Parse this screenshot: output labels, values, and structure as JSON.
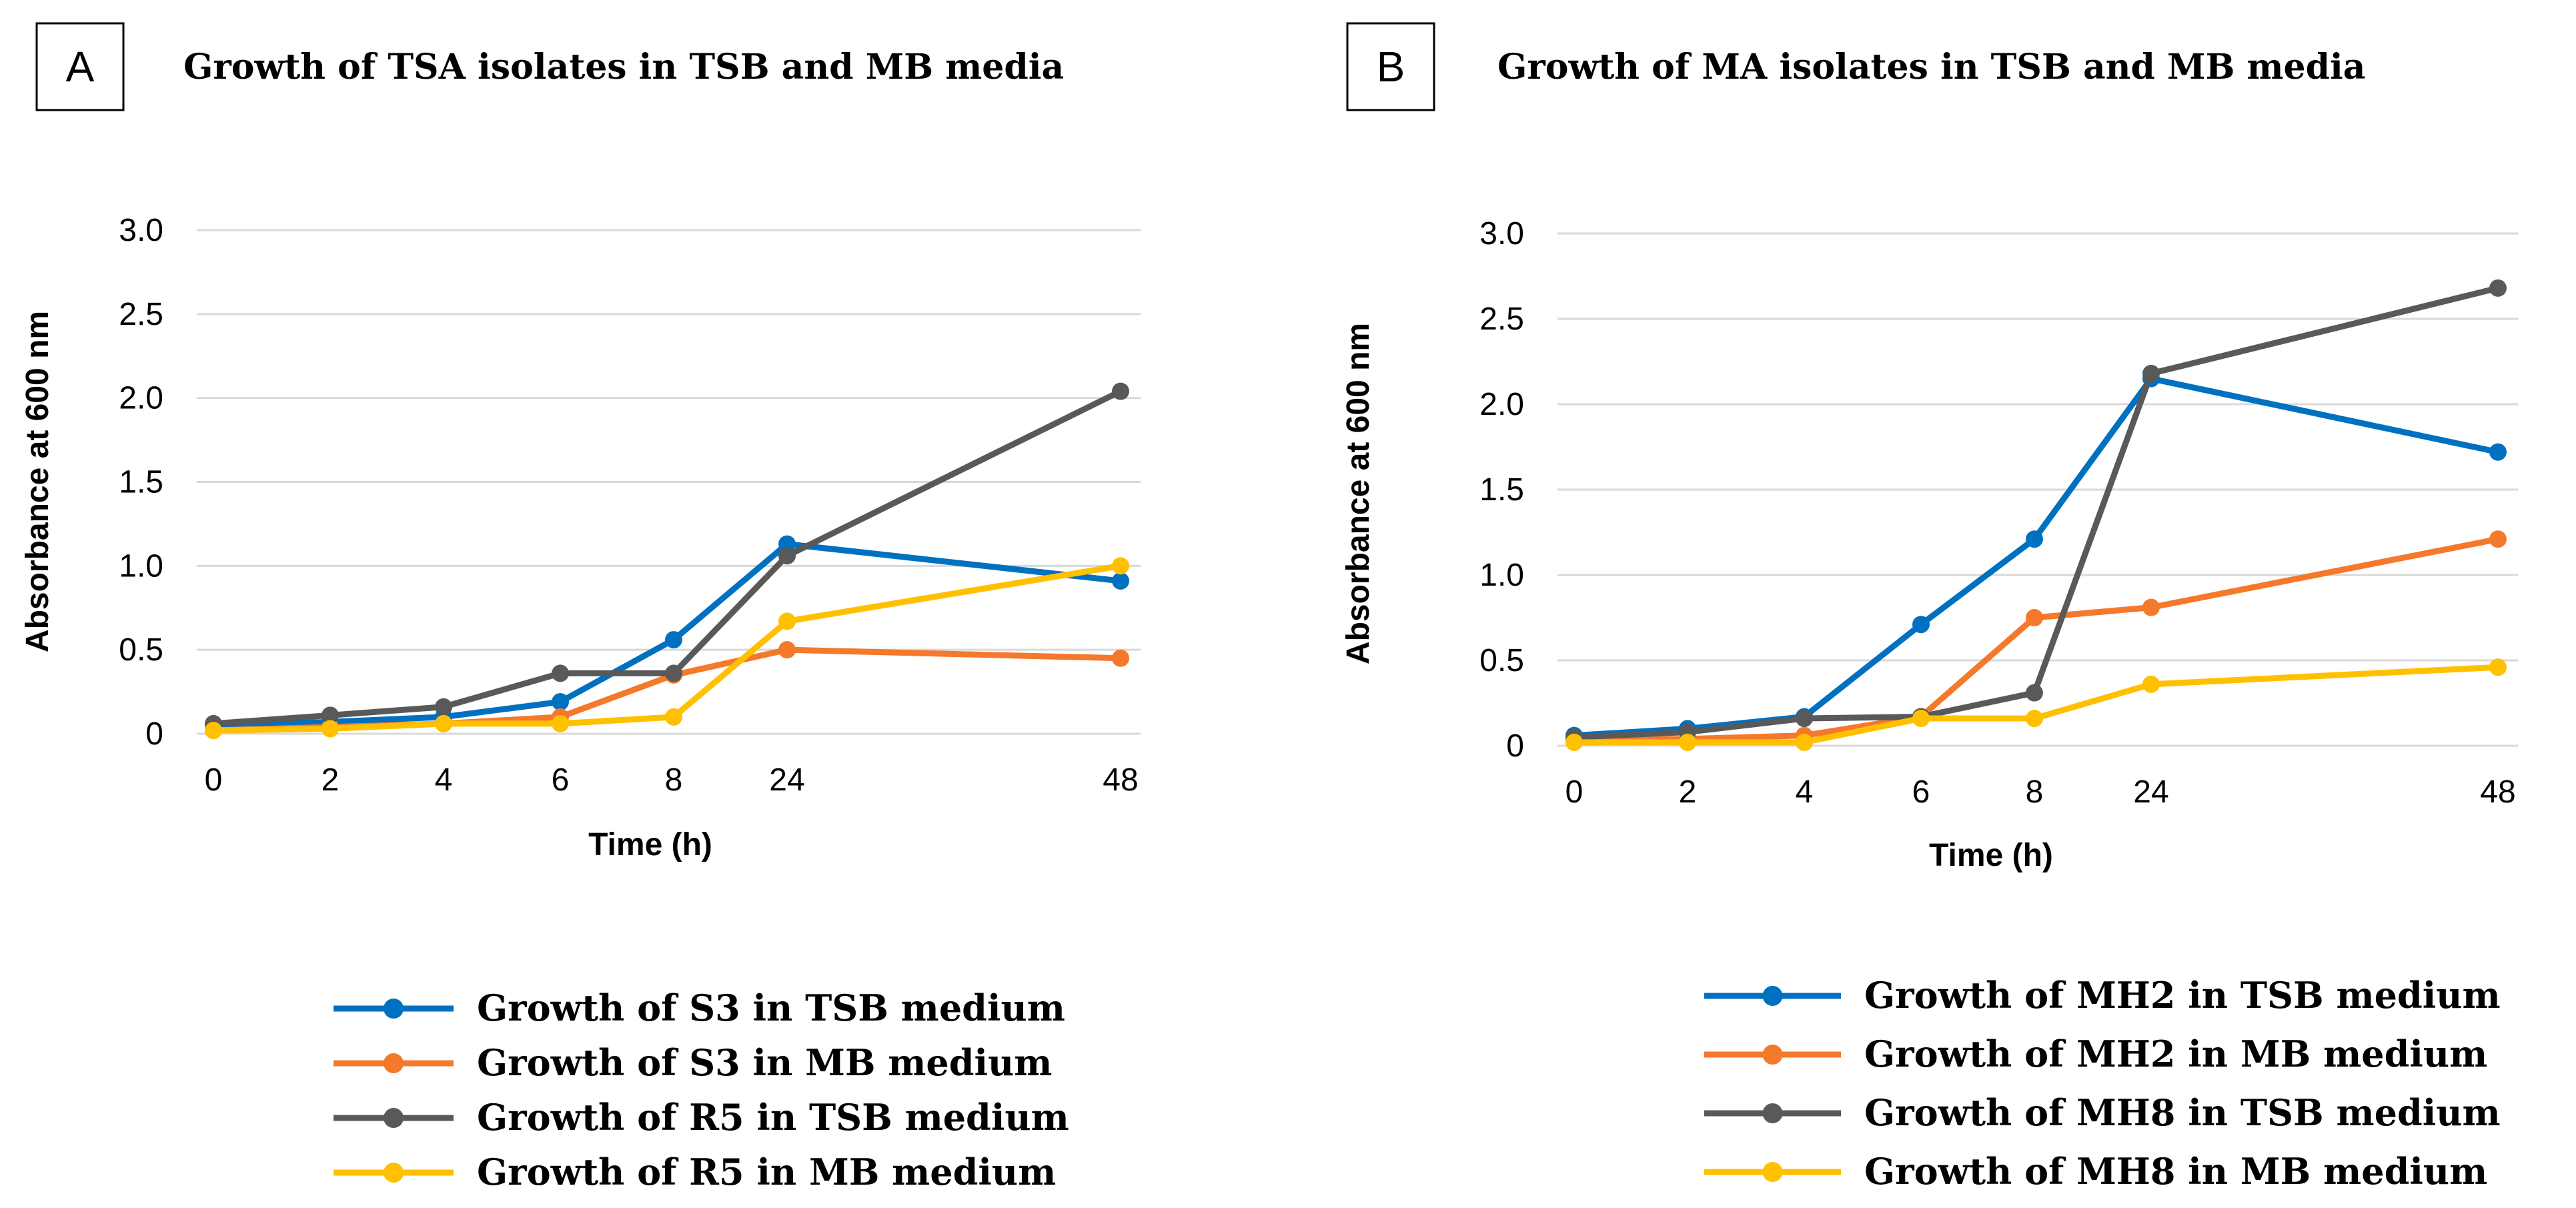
{
  "chart_data": [
    {
      "type": "line",
      "panel_label": "A",
      "title": "Growth of TSA isolates in TSB and MB media",
      "xlabel": "Time (h)",
      "ylabel": "Absorbance at 600 nm",
      "categories": [
        "0",
        "2",
        "4",
        "6",
        "8",
        "24",
        "48"
      ],
      "ylim": [
        0,
        3.0
      ],
      "yticks": [
        "0",
        "0.5",
        "1.0",
        "1.5",
        "2.0",
        "2.5",
        "3.0"
      ],
      "grid": true,
      "legend_position": "bottom",
      "series": [
        {
          "name": "Growth of S3 in TSB medium",
          "color": "#0070C0",
          "values": [
            0.05,
            0.07,
            0.1,
            0.19,
            0.56,
            1.13,
            0.91
          ]
        },
        {
          "name": "Growth of S3 in MB medium",
          "color": "#F4792B",
          "values": [
            0.02,
            0.04,
            0.06,
            0.1,
            0.35,
            0.5,
            0.45
          ]
        },
        {
          "name": "Growth of R5 in TSB medium",
          "color": "#595959",
          "values": [
            0.06,
            0.11,
            0.16,
            0.36,
            0.36,
            1.06,
            2.04
          ]
        },
        {
          "name": "Growth of R5 in MB medium",
          "color": "#FFC000",
          "values": [
            0.02,
            0.03,
            0.06,
            0.06,
            0.1,
            0.67,
            1.0
          ]
        }
      ]
    },
    {
      "type": "line",
      "panel_label": "B",
      "title": "Growth of MA isolates in TSB and MB media",
      "xlabel": "Time (h)",
      "ylabel": "Absorbance at 600 nm",
      "categories": [
        "0",
        "2",
        "4",
        "6",
        "8",
        "24",
        "48"
      ],
      "ylim": [
        0,
        3.0
      ],
      "yticks": [
        "0",
        "0.5",
        "1.0",
        "1.5",
        "2.0",
        "2.5",
        "3.0"
      ],
      "grid": true,
      "legend_position": "bottom",
      "series": [
        {
          "name": "Growth of MH2 in TSB medium",
          "color": "#0070C0",
          "values": [
            0.06,
            0.1,
            0.17,
            0.71,
            1.21,
            2.15,
            1.72
          ]
        },
        {
          "name": "Growth of MH2 in MB medium",
          "color": "#F4792B",
          "values": [
            0.03,
            0.04,
            0.06,
            0.17,
            0.75,
            0.81,
            1.21
          ]
        },
        {
          "name": "Growth of MH8 in TSB medium",
          "color": "#595959",
          "values": [
            0.05,
            0.08,
            0.16,
            0.17,
            0.31,
            2.18,
            2.68
          ]
        },
        {
          "name": "Growth of MH8 in MB medium",
          "color": "#FFC000",
          "values": [
            0.02,
            0.02,
            0.02,
            0.16,
            0.16,
            0.36,
            0.46
          ]
        }
      ]
    }
  ]
}
